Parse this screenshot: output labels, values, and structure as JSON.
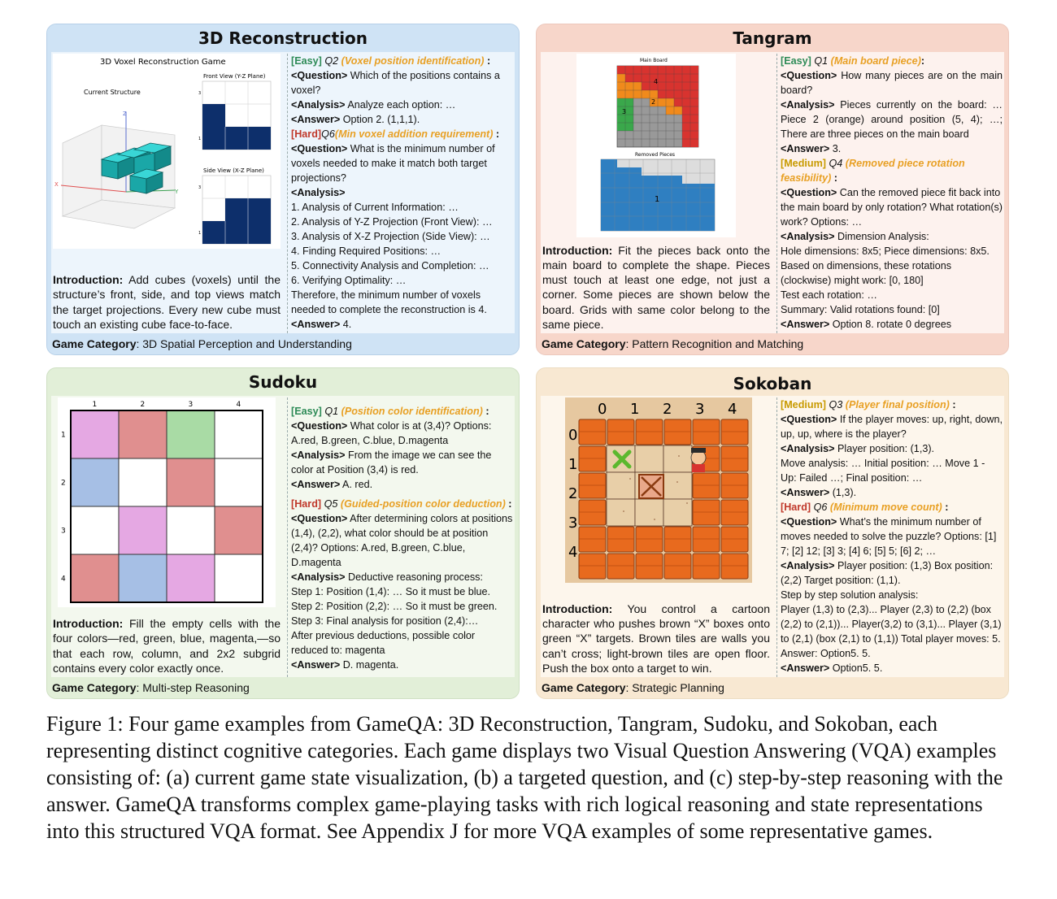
{
  "panels": {
    "recon": {
      "title": "3D Reconstruction",
      "figure": {
        "main_title": "3D Voxel Reconstruction Game",
        "current_label": "Current Structure",
        "front_title": "Front View (Y-Z Plane)",
        "side_title": "Side View (X-Z Plane)",
        "tick_1": "1",
        "tick_2": "2",
        "tick_3": "3",
        "axis_z": "Z",
        "axis_y": "Y",
        "axis_x": "X"
      },
      "intro_label": "Introduction:",
      "intro_text": " Add cubes (voxels) until the structure’s front, side, and top views match the target projections. Every new cube must touch an existing cube face-to-face.",
      "footer_label": "Game Category",
      "footer_text": ": 3D Spatial Perception and Understanding",
      "q1": {
        "difficulty": "[Easy]",
        "id": "Q2",
        "name": "(Voxel position identification)",
        "suffix": " :",
        "question_tag": "<Question>",
        "question": " Which of the positions contains a voxel?",
        "analysis_tag": "<Analysis>",
        "analysis": " Analyze each option: …",
        "answer_tag": "<Answer>",
        "answer": " Option 2. (1,1,1)."
      },
      "q2": {
        "difficulty": "[Hard]",
        "id": "Q6",
        "name": "(Min voxel addition requirement)",
        "suffix": " :",
        "question_tag": "<Question>",
        "question": " What is the minimum number of voxels needed to make it match both target projections?",
        "analysis_tag": "<Analysis>",
        "steps": [
          "1. Analysis of Current Information: …",
          "2. Analysis of Y-Z Projection (Front View): …",
          "3. Analysis of X-Z Projection (Side View): …",
          "4. Finding Required Positions: …",
          "5. Connectivity Analysis and Completion: …",
          "6. Verifying Optimality: …",
          "Therefore, the minimum number of voxels needed to complete the reconstruction is 4."
        ],
        "answer_tag": "<Answer>",
        "answer": " 4."
      }
    },
    "tangram": {
      "title": "Tangram",
      "figure": {
        "board_title": "Main Board",
        "removed_title": "Removed Pieces",
        "piece_4": "4",
        "piece_2": "2",
        "piece_3": "3",
        "piece_1": "1"
      },
      "intro_label": "Introduction:",
      "intro_text": " Fit the pieces back onto the main board to complete the shape. Pieces must touch at least one edge, not just a corner. Some pieces are shown below the board. Grids with same color belong to the same piece.",
      "footer_label": "Game Category",
      "footer_text": ": Pattern Recognition and Matching",
      "q1": {
        "difficulty": "[Easy]",
        "id": "Q1",
        "name": "(Main board piece)",
        "suffix": ":",
        "question_tag": "<Question>",
        "question": " How many pieces are on the main board?",
        "analysis_tag": "<Analysis>",
        "analysis": " Pieces currently on the board: … Piece 2 (orange) around position (5, 4); …; There are three pieces on the main board",
        "answer_tag": "<Answer>",
        "answer": " 3."
      },
      "q2": {
        "difficulty": "[Medium]",
        "id": "Q4",
        "name": "(Removed piece rotation feasibility)",
        "suffix": " :",
        "question_tag": "<Question>",
        "question": " Can the removed piece fit back into the main board by only rotation? What rotation(s) work? Options: …",
        "analysis_tag": "<Analysis>",
        "analysis": " Dimension Analysis:",
        "lines": [
          "Hole dimensions: 8x5; Piece dimensions: 8x5.",
          "Based on dimensions, these rotations (clockwise) might work: [0, 180]",
          "Test each rotation: …",
          "Summary:  Valid rotations found: [0]"
        ],
        "answer_tag": "<Answer>",
        "answer": " Option 8. rotate 0 degrees"
      }
    },
    "sudoku": {
      "title": "Sudoku",
      "figure": {
        "cols": [
          "1",
          "2",
          "3",
          "4"
        ],
        "rows": [
          "1",
          "2",
          "3",
          "4"
        ],
        "grid": [
          [
            "magenta",
            "red",
            "green",
            "white"
          ],
          [
            "blue",
            "white",
            "red",
            "white"
          ],
          [
            "white",
            "magenta",
            "white",
            "red"
          ],
          [
            "red",
            "blue",
            "magenta",
            "white"
          ]
        ],
        "colors": {
          "magenta": "#e5a8e3",
          "red": "#e08f8f",
          "green": "#a9dba5",
          "blue": "#a6bfe5",
          "white": "#ffffff"
        }
      },
      "intro_label": "Introduction:",
      "intro_text": " Fill the empty cells with the four colors—red, green, blue, magenta,—so that each row, column, and 2x2 subgrid contains every color exactly once.",
      "footer_label": "Game Category",
      "footer_text": ": Multi-step Reasoning",
      "q1": {
        "difficulty": "[Easy]",
        "id": "Q1",
        "name": "(Position color identification)",
        "suffix": " :",
        "question_tag": "<Question>",
        "question": " What color is at (3,4)? Options: A.red, B.green, C.blue, D.magenta",
        "analysis_tag": "<Analysis>",
        "analysis": " From the image we can see the color at Position (3,4) is red.",
        "answer_tag": "<Answer>",
        "answer": " A. red."
      },
      "q2": {
        "difficulty": "[Hard]",
        "id": "Q5",
        "name": "(Guided-position color deduction)",
        "suffix": " :",
        "question_tag": "<Question>",
        "question": " After determining colors at positions (1,4), (2,2), what color should be at position (2,4)? Options: A.red, B.green, C.blue, D.magenta",
        "analysis_tag": "<Analysis>",
        "analysis": "  Deductive reasoning process:",
        "lines": [
          "Step 1: Position (1,4): …  So it must be blue.",
          "Step 2: Position (2,2): … So it must be green.",
          "Step 3: Final analysis for position (2,4):…",
          "After previous deductions, possible color reduced to: magenta"
        ],
        "answer_tag": "<Answer>",
        "answer": " D. magenta."
      }
    },
    "sokoban": {
      "title": "Sokoban",
      "figure": {
        "cols": [
          "0",
          "1",
          "2",
          "3",
          "4"
        ],
        "rows": [
          "0",
          "1",
          "2",
          "3",
          "4"
        ]
      },
      "intro_label": "Introduction:",
      "intro_text": " You control a cartoon character who pushes brown “X” boxes onto green “X” targets. Brown tiles are walls you can’t cross; light-brown tiles are open floor. Push the box onto a target to win.",
      "footer_label": "Game Category",
      "footer_text": ": Strategic Planning",
      "q1": {
        "difficulty": "[Medium]",
        "id": "Q3",
        "name": "(Player final position)",
        "suffix": " :",
        "question_tag": "<Question>",
        "question": " If the player moves: up, right, down, up, up, where is the player?",
        "analysis_tag": "<Analysis>",
        "analysis": " Player position: (1,3).",
        "lines": [
          "Move analysis: … Initial position: … Move 1 - Up: Failed …; Final position: …"
        ],
        "answer_tag": "<Answer>",
        "answer": " (1,3)."
      },
      "q2": {
        "difficulty": "[Hard]",
        "id": "Q6",
        "name": "(Minimum move count)",
        "suffix": " :",
        "question_tag": "<Question>",
        "question": " What’s the minimum number of moves needed to solve the puzzle? Options: [1] 7; [2] 12; [3] 3; [4] 6; [5] 5; [6] 2; …",
        "analysis_tag": "<Analysis>",
        "analysis": "  Player position: (1,3) Box position: (2,2) Target position: (1,1).",
        "lines": [
          "Step by step solution analysis:",
          "Player (1,3) to (2,3)... Player (2,3) to (2,2) (box (2,2) to (2,1))... Player(3,2) to (3,1)... Player (3,1) to (2,1) (box (2,1) to (1,1)) Total player moves: 5. Answer: Option5. 5."
        ],
        "answer_tag": "<Answer>",
        "answer": " Option5. 5."
      }
    }
  },
  "caption": "Figure 1: Four game examples from GameQA: 3D Reconstruction, Tangram, Sudoku, and Sokoban, each representing distinct cognitive categories. Each game displays two Visual Question Answering (VQA) examples consisting of: (a) current game state visualization, (b) a targeted question, and (c) step-by-step reasoning with the answer. GameQA transforms complex game-playing tasks with rich logical reasoning and state representations into this structured VQA format. See Appendix J for more VQA examples of some representative games."
}
